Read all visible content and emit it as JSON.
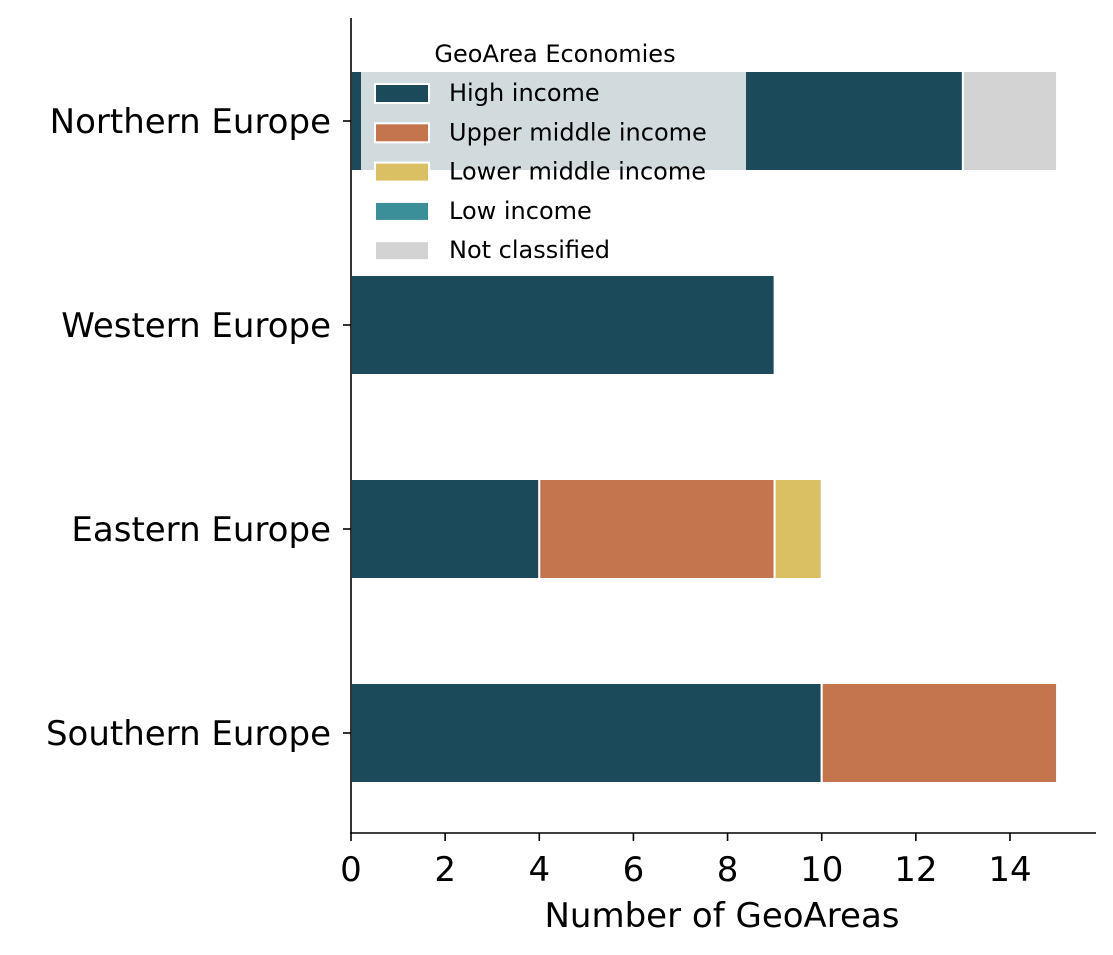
{
  "chart_data": {
    "type": "bar",
    "orientation": "horizontal",
    "stacked": true,
    "categories": [
      "Northern Europe",
      "Western Europe",
      "Eastern Europe",
      "Southern Europe"
    ],
    "series": [
      {
        "name": "High income",
        "color": "#1b4a5a",
        "values": [
          13,
          9,
          4,
          10
        ]
      },
      {
        "name": "Upper middle income",
        "color": "#c5754e",
        "values": [
          0,
          0,
          5,
          5
        ]
      },
      {
        "name": "Lower middle income",
        "color": "#dbc063",
        "values": [
          0,
          0,
          1,
          0
        ]
      },
      {
        "name": "Low income",
        "color": "#3a8f99",
        "values": [
          0,
          0,
          0,
          0
        ]
      },
      {
        "name": "Not classified",
        "color": "#d3d3d3",
        "values": [
          2,
          0,
          0,
          0
        ]
      }
    ],
    "xlabel": "Number of GeoAreas",
    "ylabel": "",
    "xlim": [
      0,
      15.8
    ],
    "xticks": [
      0,
      2,
      4,
      6,
      8,
      10,
      12,
      14
    ],
    "legend": {
      "title": "GeoArea Economies",
      "placement": "top"
    },
    "grid": false
  }
}
